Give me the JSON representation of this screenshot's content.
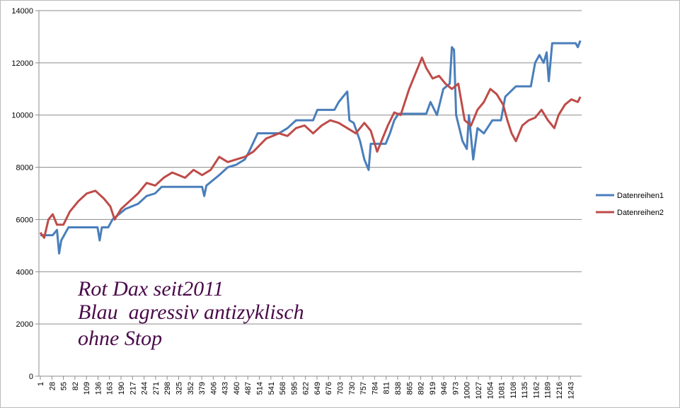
{
  "chart_data": {
    "type": "line",
    "xlim": [
      1,
      1269
    ],
    "xticks": [
      1,
      28,
      55,
      82,
      109,
      136,
      163,
      190,
      217,
      244,
      271,
      298,
      325,
      352,
      379,
      406,
      433,
      460,
      487,
      514,
      541,
      568,
      595,
      622,
      649,
      676,
      703,
      730,
      757,
      784,
      811,
      838,
      865,
      892,
      919,
      946,
      973,
      1000,
      1027,
      1054,
      1081,
      1108,
      1135,
      1162,
      1189,
      1216,
      1243
    ],
    "ylim": [
      0,
      14000
    ],
    "yticks": [
      0,
      2000,
      4000,
      6000,
      8000,
      10000,
      12000,
      14000
    ],
    "grid": true,
    "legend": "right",
    "annotations": [
      "Rot Dax seit2011",
      "Blau  agressiv antizyklisch",
      "ohne Stop"
    ],
    "series": [
      {
        "name": "Datenreihen1",
        "color": "#4a7ebb",
        "x": [
          1,
          30,
          40,
          45,
          50,
          67,
          135,
          140,
          145,
          160,
          170,
          200,
          230,
          250,
          270,
          285,
          380,
          385,
          390,
          420,
          440,
          460,
          480,
          490,
          510,
          560,
          580,
          600,
          640,
          650,
          690,
          700,
          720,
          725,
          735,
          750,
          760,
          770,
          775,
          810,
          820,
          830,
          840,
          905,
          915,
          930,
          945,
          960,
          965,
          970,
          975,
          990,
          1000,
          1005,
          1015,
          1025,
          1040,
          1060,
          1080,
          1090,
          1115,
          1150,
          1160,
          1170,
          1180,
          1187,
          1192,
          1200,
          1255,
          1260,
          1266
        ],
        "values": [
          5400,
          5400,
          5600,
          4700,
          5200,
          5700,
          5700,
          5200,
          5700,
          5700,
          6000,
          6400,
          6600,
          6900,
          7000,
          7250,
          7250,
          6900,
          7300,
          7700,
          8000,
          8100,
          8300,
          8600,
          9300,
          9300,
          9500,
          9800,
          9800,
          10200,
          10200,
          10500,
          10900,
          9800,
          9700,
          9000,
          8300,
          7900,
          8900,
          8900,
          9300,
          9800,
          10050,
          10050,
          10500,
          10000,
          11000,
          11200,
          12600,
          12500,
          10000,
          9000,
          8700,
          10000,
          8300,
          9500,
          9300,
          9800,
          9800,
          10700,
          11100,
          11100,
          12000,
          12300,
          12000,
          12400,
          11300,
          12750,
          12750,
          12600,
          12850
        ]
      },
      {
        "name": "Datenreihen2",
        "color": "#be4b48",
        "x": [
          1,
          10,
          20,
          30,
          40,
          55,
          70,
          90,
          110,
          130,
          150,
          165,
          175,
          190,
          210,
          230,
          250,
          270,
          290,
          310,
          340,
          360,
          380,
          400,
          420,
          440,
          460,
          480,
          500,
          530,
          560,
          580,
          600,
          620,
          640,
          660,
          680,
          700,
          720,
          740,
          760,
          775,
          790,
          800,
          815,
          830,
          845,
          865,
          880,
          895,
          905,
          920,
          935,
          950,
          965,
          980,
          995,
          1010,
          1025,
          1040,
          1055,
          1070,
          1085,
          1095,
          1105,
          1115,
          1130,
          1145,
          1160,
          1175,
          1190,
          1205,
          1215,
          1230,
          1245,
          1260,
          1266
        ],
        "values": [
          5500,
          5300,
          6000,
          6200,
          5800,
          5800,
          6300,
          6700,
          7000,
          7100,
          6800,
          6500,
          6000,
          6400,
          6700,
          7000,
          7400,
          7300,
          7600,
          7800,
          7600,
          7900,
          7700,
          7900,
          8400,
          8200,
          8300,
          8400,
          8600,
          9100,
          9300,
          9200,
          9500,
          9600,
          9300,
          9600,
          9800,
          9700,
          9500,
          9300,
          9700,
          9400,
          8600,
          9000,
          9600,
          10100,
          10000,
          11000,
          11600,
          12200,
          11800,
          11400,
          11500,
          11200,
          11000,
          11200,
          9800,
          9600,
          10200,
          10500,
          11000,
          10800,
          10400,
          9800,
          9300,
          9000,
          9600,
          9800,
          9900,
          10200,
          9800,
          9500,
          10000,
          10400,
          10600,
          10500,
          10700
        ]
      }
    ]
  }
}
